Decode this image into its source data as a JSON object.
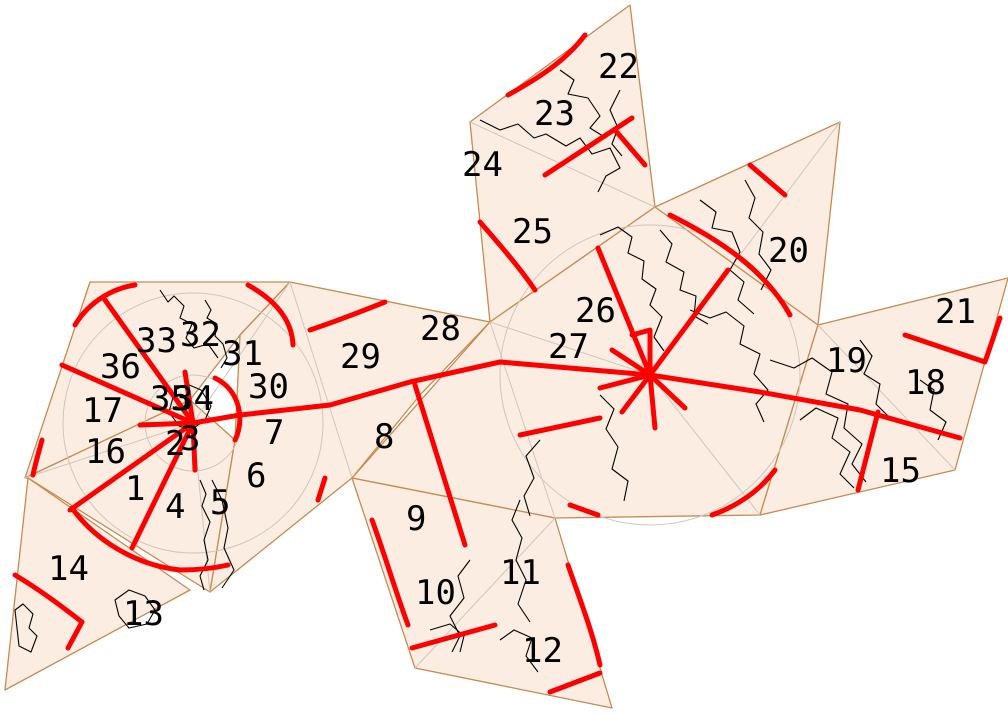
{
  "map": {
    "colors": {
      "land_face": "#fbede2",
      "face_edge": "#c88a4e",
      "seam": "#ff0000",
      "coastline": "#000000",
      "graticule": "#cfc6bd"
    },
    "face_labels": [
      "22",
      "23",
      "24",
      "25",
      "26",
      "27",
      "20",
      "21",
      "19",
      "18",
      "15",
      "28",
      "29",
      "30",
      "31",
      "32",
      "33",
      "36",
      "34",
      "35",
      "17",
      "16",
      "1",
      "2",
      "3",
      "4",
      "5",
      "6",
      "7",
      "8",
      "9",
      "10",
      "11",
      "12",
      "13",
      "14"
    ]
  }
}
